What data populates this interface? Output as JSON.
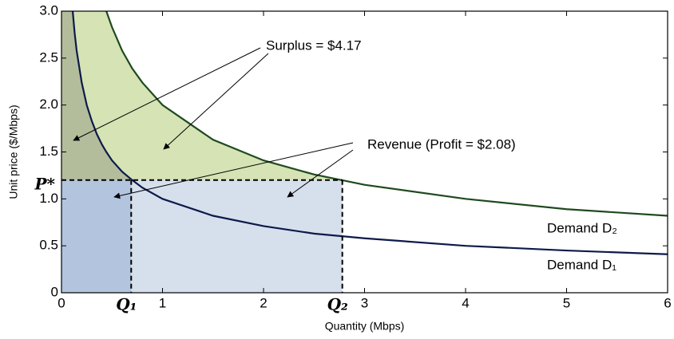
{
  "chart_data": {
    "type": "line",
    "x_label": "Quantity (Mbps)",
    "y_label": "Unit price ($/Mbps)",
    "x": [
      0.111,
      0.13,
      0.15,
      0.2,
      0.25,
      0.3,
      0.35,
      0.4,
      0.444,
      0.5,
      0.6,
      0.7,
      0.8,
      1,
      1.5,
      2,
      2.5,
      3,
      4,
      5,
      6
    ],
    "series": [
      {
        "name": "Demand D₁",
        "color": "#0d1a4a",
        "values": [
          3.0,
          2.77,
          2.58,
          2.24,
          2.0,
          1.83,
          1.69,
          1.58,
          1.5,
          1.41,
          1.29,
          1.2,
          1.12,
          1.0,
          0.82,
          0.71,
          0.63,
          0.58,
          0.5,
          0.45,
          0.41
        ]
      },
      {
        "name": "Demand D₂",
        "color": "#1f4a1f",
        "values": [
          null,
          null,
          null,
          null,
          null,
          null,
          null,
          null,
          3.0,
          2.83,
          2.58,
          2.39,
          2.24,
          2.0,
          1.63,
          1.41,
          1.26,
          1.15,
          1.0,
          0.89,
          0.82
        ]
      }
    ],
    "p_star": {
      "value": 1.2,
      "label": "P*"
    },
    "q1": {
      "value": 0.69,
      "label": "Q₁"
    },
    "q2": {
      "value": 2.78,
      "label": "Q₂"
    },
    "annotations": [
      "Surplus = $4.17",
      "Revenue (Profit = $2.08)"
    ],
    "xlim": [
      0,
      6
    ],
    "xticks": [
      0,
      1,
      2,
      3,
      4,
      5,
      6
    ],
    "ylim": [
      0,
      3
    ],
    "yticks": [
      0,
      0.5,
      {
        "value": 1,
        "label": "1.0"
      },
      1.5,
      {
        "value": 2,
        "label": "2.0"
      },
      2.5,
      {
        "value": 3,
        "label": "3.0"
      }
    ],
    "fills": {
      "surplus_d2": "#d5e3b5",
      "surplus_d1": "#b3bd9c",
      "revenue_q2": "#d6dfec",
      "revenue_q1": "#b2c4de"
    }
  }
}
